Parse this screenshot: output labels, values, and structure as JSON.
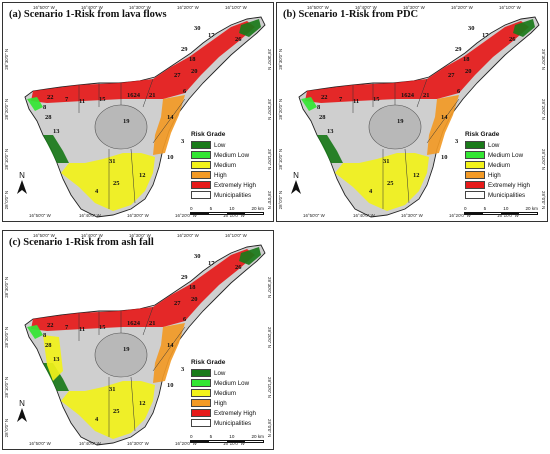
{
  "figure": {
    "panels": [
      {
        "id": "a",
        "title": "(a) Scenario 1-Risk from lava flows"
      },
      {
        "id": "b",
        "title": "(b) Scenario 1-Risk from PDC"
      },
      {
        "id": "c",
        "title": "(c) Scenario 1-Risk from ash fall"
      }
    ],
    "legend": {
      "title": "Risk Grade",
      "items": [
        {
          "label": "Low",
          "color": "#1a7a1a"
        },
        {
          "label": "Medium Low",
          "color": "#33e633"
        },
        {
          "label": "Medium",
          "color": "#f2f21a"
        },
        {
          "label": "High",
          "color": "#f29a26"
        },
        {
          "label": "Extremely High",
          "color": "#e61a1a"
        },
        {
          "label": "Municipalities",
          "color": "#ffffff"
        }
      ]
    },
    "scale": {
      "ticks": [
        "0",
        "5",
        "10",
        "20 km"
      ]
    },
    "north_label": "N",
    "longitudes": [
      "16°50'0\" W",
      "16°40'0\" W",
      "16°30'0\" W",
      "16°20'0\" W",
      "16°10'0\" W"
    ],
    "latitudes": [
      "28°30'0\" N",
      "28°20'0\" N",
      "28°10'0\" N",
      "28°0'0\" N"
    ],
    "municipality_labels": [
      "30",
      "17",
      "26",
      "29",
      "18",
      "20",
      "27",
      "22",
      "7",
      "11",
      "15",
      "1624",
      "21",
      "6",
      "8",
      "28",
      "19",
      "14",
      "13",
      "3",
      "10",
      "31",
      "12",
      "25",
      "4"
    ]
  }
}
